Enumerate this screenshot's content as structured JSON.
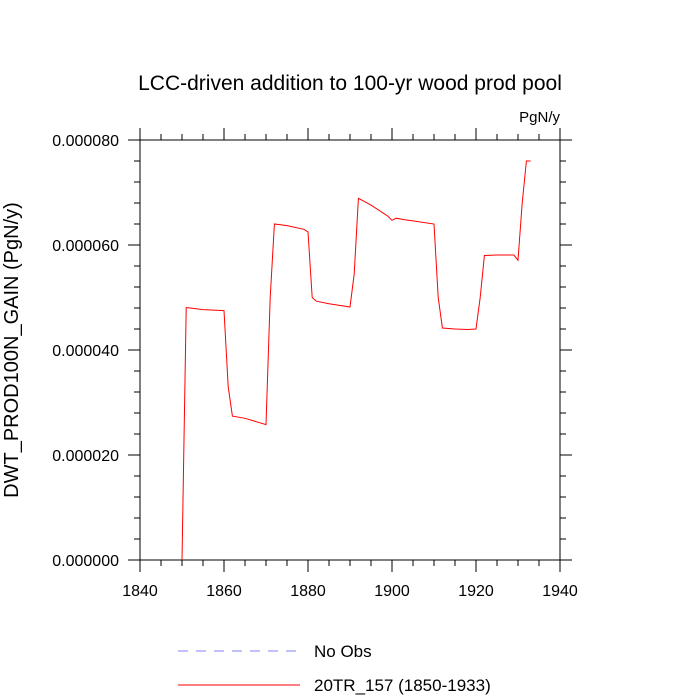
{
  "chart_data": {
    "type": "line",
    "title": "LCC-driven addition to 100-yr wood prod pool",
    "units": "PgN/y",
    "ylabel": "DWT_PROD100N_GAIN  (PgN/y)",
    "xlabel": "",
    "xlim": [
      1840,
      1940
    ],
    "ylim": [
      0,
      8e-05
    ],
    "x_ticks": [
      1840,
      1860,
      1880,
      1900,
      1920,
      1940
    ],
    "x_tick_labels": [
      "1840",
      "1860",
      "1880",
      "1900",
      "1920",
      "1940"
    ],
    "y_ticks": [
      0,
      2e-05,
      4e-05,
      6e-05,
      8e-05
    ],
    "y_tick_labels": [
      "0.000000",
      "0.000020",
      "0.000040",
      "0.000060",
      "0.000080"
    ],
    "grid": false,
    "legend_placement": "bottom",
    "series": [
      {
        "name": "No Obs",
        "color": "#8080ff",
        "dash": "dashed",
        "x": [],
        "y": []
      },
      {
        "name": "20TR_157 (1850-1933)",
        "color": "#ff0000",
        "dash": "solid",
        "x": [
          1850,
          1851,
          1852,
          1855,
          1860,
          1861,
          1862,
          1865,
          1870,
          1871,
          1872,
          1875,
          1879,
          1880,
          1881,
          1882,
          1885,
          1890,
          1891,
          1892,
          1895,
          1899,
          1900,
          1901,
          1903,
          1905,
          1910,
          1911,
          1912,
          1915,
          1918,
          1920,
          1921,
          1922,
          1925,
          1929,
          1930,
          1931,
          1932,
          1933
        ],
        "y": [
          0,
          4.81e-05,
          4.8e-05,
          4.77e-05,
          4.75e-05,
          3.3e-05,
          2.74e-05,
          2.7e-05,
          2.58e-05,
          5e-05,
          6.4e-05,
          6.37e-05,
          6.3e-05,
          6.25e-05,
          5e-05,
          4.93e-05,
          4.88e-05,
          4.82e-05,
          5.45e-05,
          6.89e-05,
          6.76e-05,
          6.55e-05,
          6.47e-05,
          6.51e-05,
          6.48e-05,
          6.46e-05,
          6.4e-05,
          5e-05,
          4.42e-05,
          4.4e-05,
          4.39e-05,
          4.4e-05,
          5e-05,
          5.8e-05,
          5.81e-05,
          5.81e-05,
          5.71e-05,
          6.8e-05,
          7.6e-05,
          7.6e-05
        ]
      }
    ]
  }
}
